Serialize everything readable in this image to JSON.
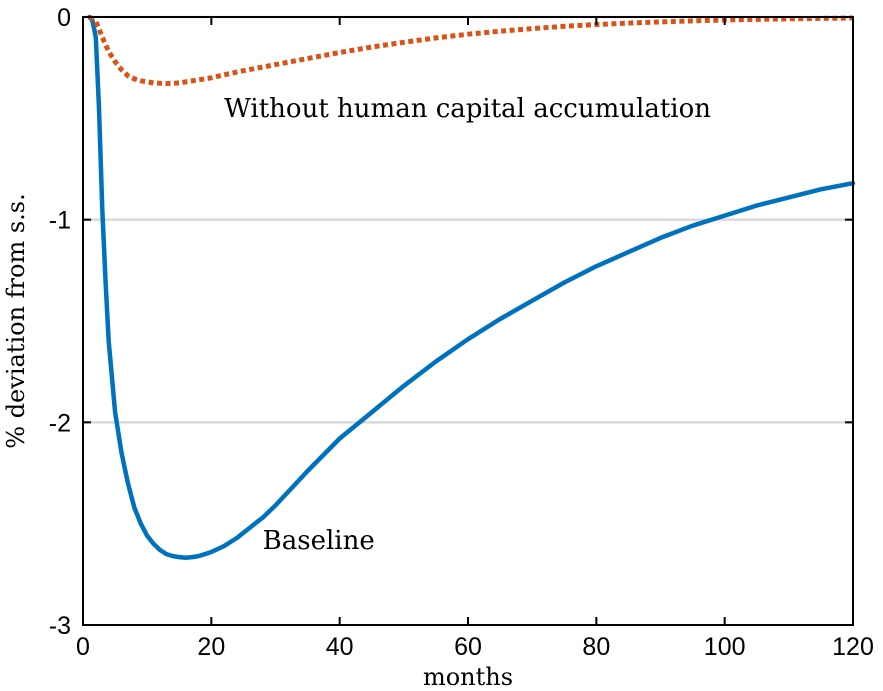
{
  "chart_data": {
    "type": "line",
    "title": "",
    "xlabel": "months",
    "ylabel": "% deviation from s.s.",
    "xlim": [
      0,
      120
    ],
    "ylim": [
      -3,
      0
    ],
    "xticks": [
      0,
      20,
      40,
      60,
      80,
      100,
      120
    ],
    "yticks": [
      -3,
      -2,
      -1,
      0
    ],
    "xtick_labels": [
      "0",
      "20",
      "40",
      "60",
      "80",
      "100",
      "120"
    ],
    "ytick_labels": [
      "-3",
      "-2",
      "-1",
      "0"
    ],
    "grid": "horizontal",
    "annotations": [
      {
        "text": "Without human capital accumulation",
        "x": 22,
        "y": -0.45
      },
      {
        "text": "Baseline",
        "x": 28,
        "y": -2.58
      }
    ],
    "series": [
      {
        "style": "solid",
        "color": "#0072BD",
        "x": [
          1,
          1.5,
          2,
          2.5,
          3,
          3.5,
          4,
          5,
          6,
          7,
          8,
          9,
          10,
          11,
          12,
          13,
          14,
          15,
          16,
          17,
          18,
          19,
          20,
          22,
          24,
          26,
          28,
          30,
          35,
          40,
          45,
          50,
          55,
          60,
          65,
          70,
          75,
          80,
          85,
          90,
          95,
          100,
          105,
          110,
          115,
          120
        ],
        "y": [
          0,
          -0.02,
          -0.1,
          -0.45,
          -0.95,
          -1.3,
          -1.6,
          -1.95,
          -2.15,
          -2.3,
          -2.42,
          -2.5,
          -2.56,
          -2.6,
          -2.63,
          -2.65,
          -2.66,
          -2.665,
          -2.668,
          -2.665,
          -2.66,
          -2.65,
          -2.64,
          -2.61,
          -2.57,
          -2.52,
          -2.47,
          -2.41,
          -2.24,
          -2.08,
          -1.95,
          -1.82,
          -1.7,
          -1.59,
          -1.49,
          -1.4,
          -1.31,
          -1.23,
          -1.16,
          -1.09,
          -1.03,
          -0.98,
          -0.93,
          -0.89,
          -0.85,
          -0.82
        ]
      },
      {
        "style": "dotted",
        "color": "#D95319",
        "x": [
          1,
          2,
          3,
          4,
          5,
          6,
          7,
          8,
          9,
          10,
          11,
          12,
          13,
          14,
          15,
          16,
          18,
          20,
          22,
          25,
          30,
          35,
          40,
          45,
          50,
          55,
          60,
          65,
          70,
          75,
          80,
          85,
          90,
          95,
          100,
          105,
          110,
          115,
          120
        ],
        "y": [
          0,
          -0.02,
          -0.1,
          -0.17,
          -0.22,
          -0.26,
          -0.29,
          -0.305,
          -0.315,
          -0.32,
          -0.325,
          -0.327,
          -0.328,
          -0.327,
          -0.325,
          -0.32,
          -0.31,
          -0.3,
          -0.285,
          -0.265,
          -0.235,
          -0.205,
          -0.175,
          -0.148,
          -0.125,
          -0.103,
          -0.085,
          -0.07,
          -0.057,
          -0.046,
          -0.037,
          -0.03,
          -0.024,
          -0.019,
          -0.015,
          -0.012,
          -0.009,
          -0.007,
          -0.005
        ]
      }
    ]
  }
}
